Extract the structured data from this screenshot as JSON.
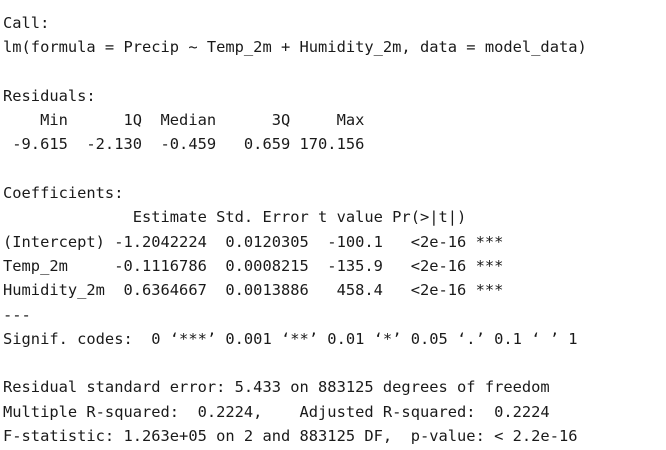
{
  "output": {
    "call_header": "Call:",
    "call_formula": "lm(formula = Precip ~ Temp_2m + Humidity_2m, data = model_data)",
    "residuals_header": "Residuals:",
    "residuals_labels": "    Min      1Q  Median      3Q     Max ",
    "residuals_values": " -9.615  -2.130  -0.459   0.659 170.156 ",
    "coefficients_header": "Coefficients:",
    "coef_columns": "              Estimate Std. Error t value Pr(>|t|)    ",
    "coef_rows": [
      "(Intercept) -1.2042224  0.0120305  -100.1   <2e-16 ***",
      "Temp_2m     -0.1116786  0.0008215  -135.9   <2e-16 ***",
      "Humidity_2m  0.6364667  0.0013886   458.4   <2e-16 ***"
    ],
    "separator": "---",
    "signif_codes": "Signif. codes:  0 ‘***’ 0.001 ‘**’ 0.01 ‘*’ 0.05 ‘.’ 0.1 ‘ ’ 1",
    "residual_se": "Residual standard error: 5.433 on 883125 degrees of freedom",
    "r_squared": "Multiple R-squared:  0.2224,    Adjusted R-squared:  0.2224 ",
    "f_statistic": "F-statistic: 1.263e+05 on 2 and 883125 DF,  p-value: < 2.2e-16"
  }
}
